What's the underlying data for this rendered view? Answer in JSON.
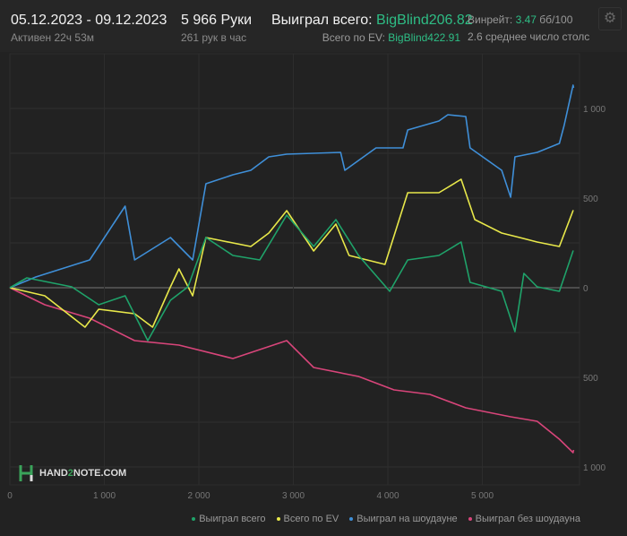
{
  "header": {
    "date_range": "05.12.2023 - 09.12.2023",
    "active": "Активен 22ч 53м",
    "hands": "5 966 Руки",
    "hands_per_hour": "261 рук в час",
    "won_total_label": "Выиграл всего:",
    "won_total_value": "BigBlind206.82",
    "ev_label": "Всего по EV:",
    "ev_value": "BigBlind422.91",
    "winrate_label": "Винрейт:",
    "winrate_value": "3.47",
    "winrate_unit": "бб/100",
    "avg_tables": "2.6 среднее число столс",
    "settings_icon": "gear-icon"
  },
  "watermark": {
    "text_a": "HAND",
    "text_b": "2",
    "text_c": "NOTE.COM"
  },
  "chart_data": {
    "type": "line",
    "xlim": [
      0,
      5966
    ],
    "ylim": [
      -1100,
      1250
    ],
    "x_ticks": [
      0,
      1000,
      2000,
      3000,
      4000,
      5000
    ],
    "x_tick_labels": [
      "0",
      "1 000",
      "2 000",
      "3 000",
      "4 000",
      "5 000"
    ],
    "y_ticks": [
      1000,
      500,
      0,
      -500,
      -1000
    ],
    "y_tick_labels": [
      "1 000",
      "500",
      "0",
      "500",
      "1 000"
    ],
    "grid": true,
    "legend_position": "bottom-right",
    "series": [
      {
        "name": "Выиграл всего",
        "color": "#1fa36a",
        "x": [
          0,
          180,
          655,
          940,
          1220,
          1460,
          1700,
          1885,
          2075,
          2360,
          2645,
          2930,
          3215,
          3450,
          3690,
          4020,
          4210,
          4540,
          4775,
          4870,
          5205,
          5345,
          5440,
          5580,
          5815,
          5960,
          5966
        ],
        "y": [
          0,
          55,
          5,
          -95,
          -45,
          -295,
          -70,
          5,
          280,
          180,
          155,
          405,
          230,
          380,
          180,
          -20,
          155,
          180,
          255,
          30,
          -20,
          -245,
          80,
          5,
          -20,
          205,
          205
        ]
      },
      {
        "name": "Всего по EV",
        "color": "#e8e84a",
        "x": [
          0,
          370,
          795,
          940,
          1320,
          1510,
          1700,
          1790,
          1935,
          2075,
          2550,
          2740,
          2930,
          3215,
          3450,
          3590,
          3970,
          4210,
          4540,
          4775,
          4920,
          5205,
          5395,
          5580,
          5815,
          5960,
          5966
        ],
        "y": [
          0,
          -45,
          -220,
          -120,
          -145,
          -220,
          5,
          105,
          -45,
          280,
          230,
          305,
          430,
          205,
          355,
          180,
          130,
          530,
          530,
          605,
          380,
          305,
          280,
          255,
          230,
          430,
          430
        ]
      },
      {
        "name": "Выиграл на шоудауне",
        "color": "#3f8fd8",
        "x": [
          0,
          275,
          845,
          1220,
          1320,
          1700,
          1935,
          2075,
          2360,
          2550,
          2740,
          2930,
          3500,
          3545,
          3875,
          4160,
          4210,
          4540,
          4635,
          4825,
          4870,
          5205,
          5300,
          5345,
          5580,
          5815,
          5865,
          5960,
          5966
        ],
        "y": [
          0,
          60,
          155,
          455,
          155,
          280,
          155,
          580,
          630,
          655,
          730,
          745,
          755,
          655,
          780,
          780,
          880,
          930,
          965,
          955,
          780,
          655,
          505,
          730,
          755,
          805,
          905,
          1130,
          1115
        ]
      },
      {
        "name": "Выиграл без шоудауна",
        "color": "#d8457a",
        "x": [
          0,
          370,
          845,
          1320,
          1790,
          2360,
          2930,
          3215,
          3690,
          4065,
          4445,
          4825,
          5300,
          5580,
          5815,
          5960,
          5966
        ],
        "y": [
          0,
          -95,
          -170,
          -295,
          -320,
          -395,
          -295,
          -445,
          -495,
          -570,
          -595,
          -670,
          -720,
          -745,
          -845,
          -920,
          -905
        ]
      }
    ]
  }
}
